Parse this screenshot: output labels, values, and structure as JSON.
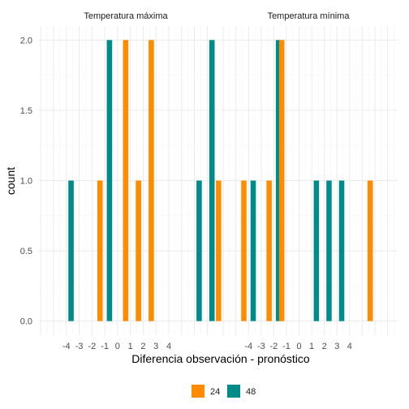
{
  "chart_data": {
    "type": "bar",
    "xlabel": "Diferencia observación - pronóstico",
    "ylabel": "count",
    "ylim": [
      -0.1,
      2.1
    ],
    "xlim": [
      -6.2,
      7.8
    ],
    "y_ticks": [
      0.0,
      0.5,
      1.0,
      1.5,
      2.0
    ],
    "y_tick_labels": [
      "0.0",
      "0.5",
      "1.0",
      "1.5",
      "2.0"
    ],
    "x_ticks": [
      -4,
      -3,
      -2,
      -1,
      0,
      1,
      2,
      3,
      4
    ],
    "x_tick_labels": [
      "-4",
      "-3",
      "-2",
      "-1",
      "0",
      "1",
      "2",
      "3",
      "4"
    ],
    "grid": true,
    "legend": {
      "position": "bottom",
      "entries": [
        {
          "label": "24",
          "color": "#FF8C00"
        },
        {
          "label": "48",
          "color": "#008B8B"
        }
      ]
    },
    "panels": [
      {
        "title": "Temperatura máxima",
        "bars": [
          {
            "x": -4,
            "group": "48",
            "count": 1
          },
          {
            "x": -1,
            "group": "24",
            "count": 1
          },
          {
            "x": -1,
            "group": "48",
            "count": 2
          },
          {
            "x": 1,
            "group": "24",
            "count": 2
          },
          {
            "x": 2,
            "group": "24",
            "count": 1
          },
          {
            "x": 3,
            "group": "24",
            "count": 2
          },
          {
            "x": 6,
            "group": "48",
            "count": 1
          },
          {
            "x": 7,
            "group": "48",
            "count": 2
          }
        ]
      },
      {
        "title": "Temperatura mínima",
        "bars": [
          {
            "x": -6,
            "group": "24",
            "count": 1
          },
          {
            "x": -4,
            "group": "48",
            "count": 1
          },
          {
            "x": -4,
            "group": "24",
            "count": 1
          },
          {
            "x": -2,
            "group": "48",
            "count": 2
          },
          {
            "x": -2,
            "group": "24",
            "count": 1
          },
          {
            "x": -1,
            "group": "24",
            "count": 2
          },
          {
            "x": 1,
            "group": "48",
            "count": 1
          },
          {
            "x": 2,
            "group": "48",
            "count": 1
          },
          {
            "x": 3,
            "group": "48",
            "count": 1
          },
          {
            "x": 6,
            "group": "24",
            "count": 1
          }
        ]
      }
    ]
  }
}
